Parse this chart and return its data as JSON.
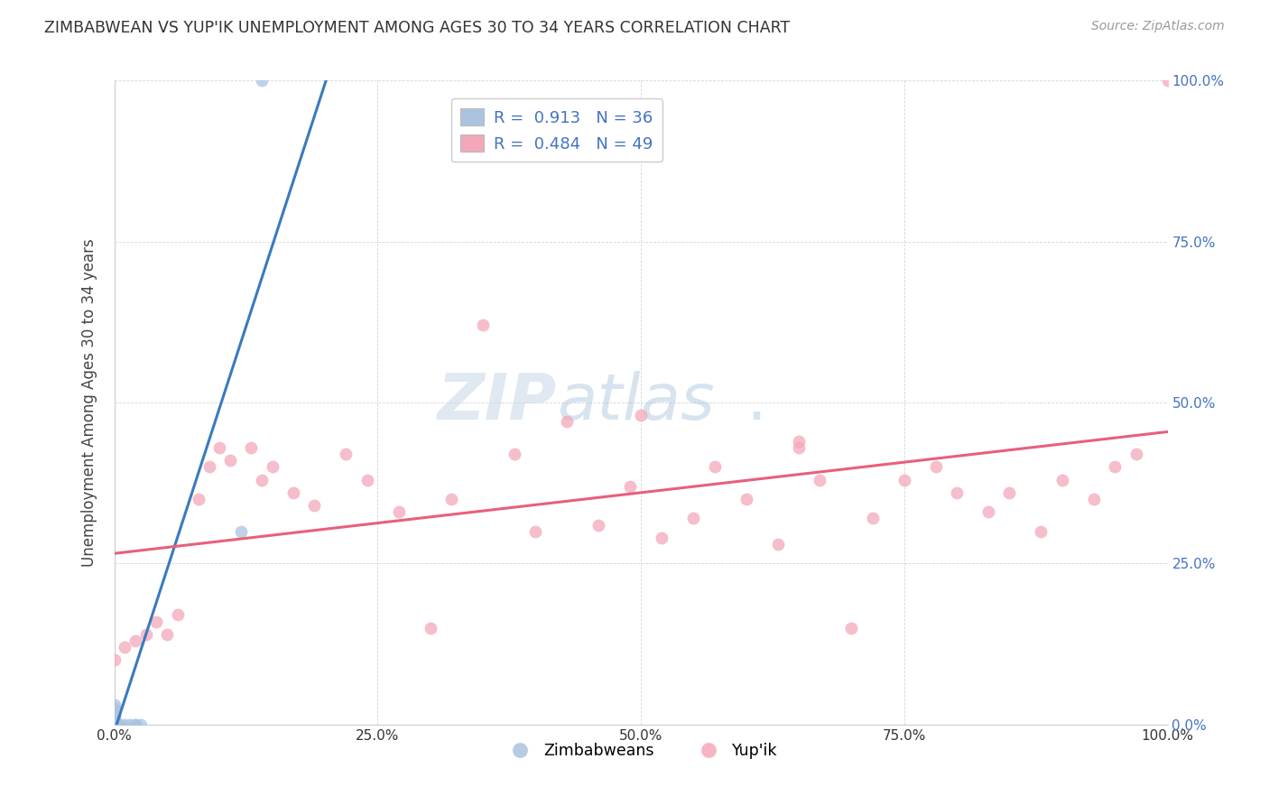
{
  "title": "ZIMBABWEAN VS YUP'IK UNEMPLOYMENT AMONG AGES 30 TO 34 YEARS CORRELATION CHART",
  "source": "Source: ZipAtlas.com",
  "ylabel": "Unemployment Among Ages 30 to 34 years",
  "xlim": [
    0.0,
    1.0
  ],
  "ylim": [
    0.0,
    1.0
  ],
  "xticks": [
    0.0,
    0.25,
    0.5,
    0.75,
    1.0
  ],
  "yticks": [
    0.0,
    0.25,
    0.5,
    0.75,
    1.0
  ],
  "xticklabels": [
    "0.0%",
    "25.0%",
    "50.0%",
    "75.0%",
    "100.0%"
  ],
  "right_yticklabels": [
    "0.0%",
    "25.0%",
    "50.0%",
    "75.0%",
    "100.0%"
  ],
  "legend_r1": "R =  0.913   N = 36",
  "legend_r2": "R =  0.484   N = 49",
  "blue_scatter_color": "#aac4e0",
  "pink_scatter_color": "#f4a7b9",
  "blue_line_color": "#3a7abf",
  "pink_line_color": "#e8607a",
  "tick_color": "#4472c4",
  "watermark_zip": "ZIP",
  "watermark_atlas": "atlas",
  "watermark_dot": ".",
  "zimbabwean_x": [
    0.0,
    0.0,
    0.0,
    0.0,
    0.0,
    0.0,
    0.0,
    0.0,
    0.0,
    0.0,
    0.0,
    0.0,
    0.0,
    0.0,
    0.0,
    0.0,
    0.0,
    0.0,
    0.0,
    0.0,
    0.0,
    0.0,
    0.0,
    0.0,
    0.0,
    0.0,
    0.005,
    0.005,
    0.005,
    0.01,
    0.015,
    0.02,
    0.02,
    0.025,
    0.12,
    0.14
  ],
  "zimbabwean_y": [
    0.0,
    0.0,
    0.0,
    0.0,
    0.0,
    0.0,
    0.0,
    0.0,
    0.0,
    0.0,
    0.0,
    0.0,
    0.0,
    0.0,
    0.0,
    0.0,
    0.0,
    0.0,
    0.005,
    0.005,
    0.01,
    0.01,
    0.015,
    0.02,
    0.025,
    0.03,
    0.0,
    0.0,
    0.0,
    0.0,
    0.0,
    0.0,
    0.0,
    0.0,
    0.3,
    1.0
  ],
  "yupik_x": [
    0.0,
    0.01,
    0.02,
    0.03,
    0.04,
    0.05,
    0.06,
    0.08,
    0.09,
    0.1,
    0.11,
    0.13,
    0.14,
    0.15,
    0.17,
    0.19,
    0.22,
    0.24,
    0.27,
    0.3,
    0.32,
    0.35,
    0.38,
    0.4,
    0.43,
    0.46,
    0.49,
    0.52,
    0.55,
    0.57,
    0.6,
    0.63,
    0.65,
    0.67,
    0.7,
    0.72,
    0.75,
    0.78,
    0.8,
    0.83,
    0.85,
    0.88,
    0.9,
    0.93,
    0.95,
    0.97,
    1.0,
    0.5,
    0.65
  ],
  "yupik_y": [
    0.1,
    0.12,
    0.13,
    0.14,
    0.16,
    0.14,
    0.17,
    0.35,
    0.4,
    0.43,
    0.41,
    0.43,
    0.38,
    0.4,
    0.36,
    0.34,
    0.42,
    0.38,
    0.33,
    0.15,
    0.35,
    0.62,
    0.42,
    0.3,
    0.47,
    0.31,
    0.37,
    0.29,
    0.32,
    0.4,
    0.35,
    0.28,
    0.43,
    0.38,
    0.15,
    0.32,
    0.38,
    0.4,
    0.36,
    0.33,
    0.36,
    0.3,
    0.38,
    0.35,
    0.4,
    0.42,
    1.0,
    0.48,
    0.44
  ]
}
